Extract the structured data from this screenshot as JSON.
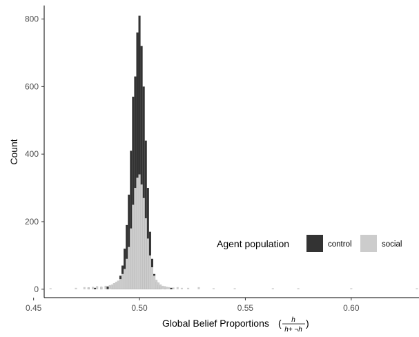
{
  "chart_data": {
    "type": "bar",
    "subtype": "overlaid-histogram",
    "title": "",
    "xlabel": "Global Belief Proportions",
    "xlabel_fraction": {
      "numerator": "h",
      "denominator": "h+ ¬h"
    },
    "ylabel": "Count",
    "xlim": [
      0.455,
      0.632
    ],
    "ylim": [
      -25,
      840
    ],
    "x_ticks": [
      0.45,
      0.5,
      0.55,
      0.6
    ],
    "x_tick_labels": [
      "0.45",
      "0.50",
      "0.55",
      "0.60"
    ],
    "y_ticks": [
      0,
      200,
      400,
      600,
      800
    ],
    "y_tick_labels": [
      "0",
      "200",
      "400",
      "600",
      "800"
    ],
    "grid": false,
    "legend": {
      "title": "Agent population",
      "position": "bottom-right",
      "entries": [
        {
          "label": "control",
          "color": "#333333"
        },
        {
          "label": "social",
          "color": "#cccccc"
        }
      ]
    },
    "bin_width": 0.001,
    "series": [
      {
        "name": "control",
        "color": "#333333",
        "x": [
          0.476,
          0.479,
          0.482,
          0.485,
          0.487,
          0.488,
          0.489,
          0.49,
          0.491,
          0.492,
          0.493,
          0.494,
          0.495,
          0.496,
          0.497,
          0.498,
          0.499,
          0.5,
          0.501,
          0.502,
          0.503,
          0.504,
          0.505,
          0.506,
          0.507,
          0.508,
          0.509,
          0.51,
          0.512,
          0.515
        ],
        "values": [
          5,
          4,
          6,
          8,
          10,
          14,
          18,
          25,
          40,
          70,
          120,
          190,
          280,
          410,
          570,
          630,
          760,
          810,
          720,
          600,
          440,
          300,
          170,
          90,
          45,
          22,
          12,
          8,
          5,
          4
        ]
      },
      {
        "name": "social",
        "color": "#cccccc",
        "x": [
          0.458,
          0.47,
          0.474,
          0.476,
          0.478,
          0.48,
          0.482,
          0.484,
          0.486,
          0.487,
          0.488,
          0.489,
          0.49,
          0.491,
          0.492,
          0.493,
          0.494,
          0.495,
          0.496,
          0.497,
          0.498,
          0.499,
          0.5,
          0.501,
          0.502,
          0.503,
          0.504,
          0.505,
          0.506,
          0.507,
          0.508,
          0.509,
          0.51,
          0.511,
          0.512,
          0.513,
          0.514,
          0.516,
          0.518,
          0.52,
          0.523,
          0.528,
          0.535,
          0.545,
          0.563,
          0.575,
          0.6,
          0.631
        ],
        "values": [
          3,
          4,
          6,
          5,
          7,
          9,
          8,
          10,
          12,
          14,
          18,
          22,
          25,
          30,
          45,
          60,
          90,
          125,
          180,
          250,
          300,
          330,
          340,
          310,
          270,
          210,
          150,
          100,
          65,
          40,
          28,
          20,
          14,
          10,
          9,
          7,
          6,
          5,
          6,
          4,
          4,
          6,
          3,
          3,
          3,
          3,
          3,
          3
        ]
      }
    ]
  }
}
